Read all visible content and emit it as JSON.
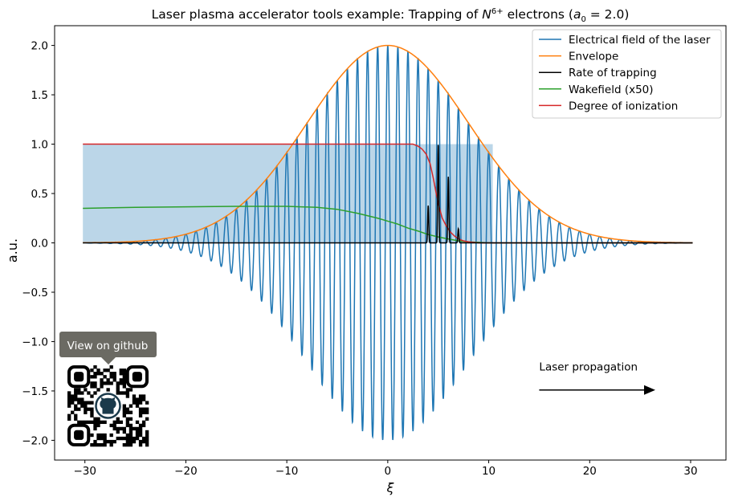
{
  "chart_data": {
    "type": "line",
    "title": "Laser plasma accelerator tools example: Trapping of N^{6+} electrons (a_0 = 2.0)",
    "title_parts": {
      "prefix": "Laser plasma accelerator tools example: Trapping of ",
      "species": "N",
      "charge": "6+",
      "mid": " electrons (",
      "a": "a",
      "a_sub": "0",
      "suffix": " = 2.0)"
    },
    "xlabel": "ξ",
    "ylabel": "a.u.",
    "xlim": [
      -33,
      33.5
    ],
    "ylim": [
      -2.2,
      2.2
    ],
    "x_ticks": [
      -30,
      -20,
      -10,
      0,
      10,
      20,
      30
    ],
    "x_tick_labels": [
      "−30",
      "−20",
      "−10",
      "0",
      "10",
      "20",
      "30"
    ],
    "y_ticks": [
      -2.0,
      -1.5,
      -1.0,
      -0.5,
      0.0,
      0.5,
      1.0,
      1.5,
      2.0
    ],
    "y_tick_labels": [
      "−2.0",
      "−1.5",
      "−1.0",
      "−0.5",
      "0.0",
      "0.5",
      "1.0",
      "1.5",
      "2.0"
    ],
    "grid": false,
    "legend_position": "top-right",
    "series": [
      {
        "name": "Electrical field of the laser",
        "color": "#1f77b4",
        "amplitude": 2.0,
        "center": 0,
        "width_sigma": 8.0,
        "wavelength": 1.0
      },
      {
        "name": "Envelope",
        "color": "#ff7f0e",
        "amplitude": 2.0,
        "center": 0,
        "width_sigma": 8.0
      },
      {
        "name": "Rate of trapping",
        "color": "#000000",
        "x": [
          -30.2,
          3.2,
          3.4,
          3.7,
          3.9,
          4.1,
          4.3,
          4.5,
          4.7,
          4.9,
          5.1,
          5.3,
          5.5,
          5.7,
          5.9,
          6.1,
          6.3,
          6.5,
          6.7,
          6.9,
          7.1,
          7.3,
          7.5,
          30.2
        ],
        "y": [
          0.0,
          0.0,
          0.08,
          0.18,
          0.3,
          0.45,
          0.62,
          0.78,
          0.92,
          1.0,
          1.0,
          0.97,
          0.9,
          0.82,
          0.72,
          0.62,
          0.5,
          0.4,
          0.28,
          0.18,
          0.1,
          0.05,
          0.0,
          0.0
        ]
      },
      {
        "name": "Wakefield (x50)",
        "color": "#2ca02c",
        "x": [
          -30.2,
          -25,
          -20,
          -15,
          -10,
          -7,
          -5,
          -3,
          -1,
          0,
          1,
          2,
          3,
          4,
          5,
          6,
          7,
          8,
          9,
          10,
          12,
          30.2
        ],
        "y": [
          0.35,
          0.36,
          0.365,
          0.37,
          0.37,
          0.36,
          0.34,
          0.3,
          0.25,
          0.22,
          0.19,
          0.15,
          0.12,
          0.085,
          0.06,
          0.04,
          0.02,
          0.01,
          0.005,
          0.0,
          0.0,
          0.0
        ]
      },
      {
        "name": "Degree of ionization",
        "color": "#d62728",
        "x": [
          -30.2,
          2.5,
          3.0,
          3.4,
          3.8,
          4.2,
          4.5,
          4.8,
          5.1,
          5.4,
          5.8,
          6.2,
          6.6,
          7.0,
          7.5,
          8.0,
          9.0,
          30.2
        ],
        "y": [
          1.0,
          1.0,
          0.98,
          0.95,
          0.9,
          0.8,
          0.66,
          0.5,
          0.36,
          0.25,
          0.17,
          0.11,
          0.07,
          0.04,
          0.02,
          0.01,
          0.0,
          0.0
        ]
      }
    ],
    "shaded_region": {
      "x": [
        -30.2,
        10.4
      ],
      "y": [
        0.0,
        1.0
      ],
      "color": "#1f77b4",
      "opacity": 0.3
    },
    "annotations": [
      {
        "text": "Laser propagation",
        "arrow_from": [
          15,
          -1.49
        ],
        "arrow_to": [
          26.5,
          -1.49
        ]
      }
    ]
  },
  "github_badge": {
    "label": "View on github",
    "qr_icon": "qr-code-github-icon"
  }
}
